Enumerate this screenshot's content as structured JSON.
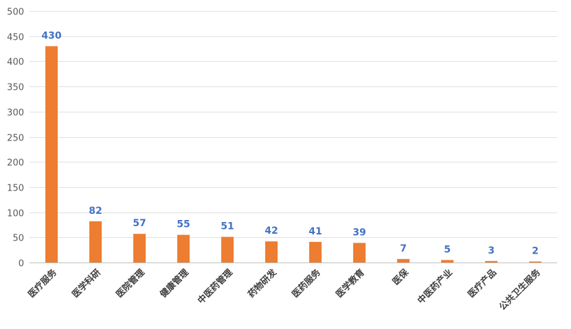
{
  "chart_data": {
    "type": "bar",
    "categories": [
      "医疗服务",
      "医学科研",
      "医院管理",
      "健康管理",
      "中医药管理",
      "药物研发",
      "医药服务",
      "医学教育",
      "医保",
      "中医药产业",
      "医疗产品",
      "公共卫生服务"
    ],
    "values": [
      430,
      82,
      57,
      55,
      51,
      42,
      41,
      39,
      7,
      5,
      3,
      2
    ],
    "ylim": [
      0,
      500
    ],
    "yticks": [
      0,
      50,
      100,
      150,
      200,
      250,
      300,
      350,
      400,
      450,
      500
    ],
    "grid": true,
    "legend": "none",
    "title": "",
    "xlabel": "",
    "ylabel": "",
    "colors": {
      "bar": "#ed7d31",
      "data_label": "#4472c4"
    }
  }
}
